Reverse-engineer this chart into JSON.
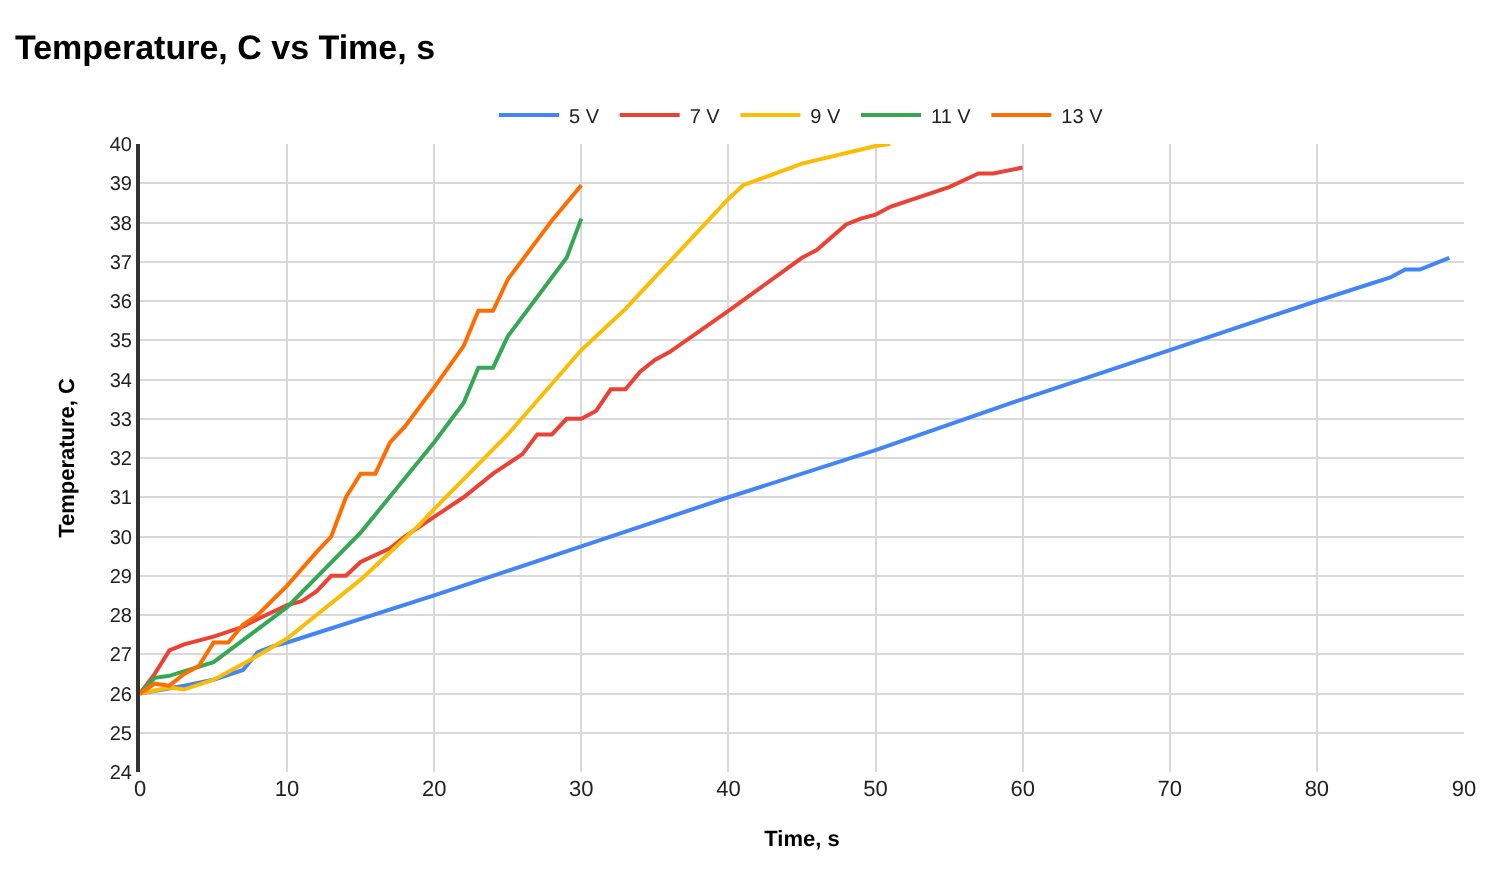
{
  "chart_data": {
    "type": "line",
    "title": "Temperature, C vs Time, s",
    "xlabel": "Time, s",
    "ylabel": "Temperature, C",
    "xlim": [
      0,
      90
    ],
    "xticks": [
      0,
      10,
      20,
      30,
      40,
      50,
      60,
      70,
      80,
      90
    ],
    "ylim": [
      24,
      40
    ],
    "yticks": [
      24,
      25,
      26,
      27,
      28,
      29,
      30,
      31,
      32,
      33,
      34,
      35,
      36,
      37,
      38,
      39,
      40
    ],
    "grid": true,
    "legend": "top",
    "marker": "none",
    "line_style": "solid",
    "series": [
      {
        "name": "5 V",
        "color": "#4285f4",
        "x": [
          0,
          3,
          5,
          7,
          8,
          9,
          10,
          20,
          30,
          40,
          50,
          60,
          70,
          80,
          85,
          86,
          87,
          89
        ],
        "values": [
          26,
          26.2,
          26.35,
          26.6,
          27.05,
          27.2,
          27.3,
          28.5,
          29.75,
          31,
          32.2,
          33.5,
          34.75,
          36,
          36.6,
          36.8,
          36.8,
          37.1
        ]
      },
      {
        "name": "7 V",
        "color": "#ea4335",
        "x": [
          0,
          1,
          2,
          3,
          5,
          7,
          8,
          10,
          11,
          12,
          13,
          14,
          15,
          17,
          18,
          20,
          22,
          24,
          26,
          27,
          28,
          29,
          30,
          31,
          32,
          33,
          34,
          35,
          36,
          40,
          45,
          46,
          48,
          49,
          50,
          51,
          55,
          57,
          58,
          60
        ],
        "values": [
          26,
          26.5,
          27.1,
          27.25,
          27.45,
          27.7,
          27.9,
          28.25,
          28.35,
          28.6,
          29,
          29,
          29.35,
          29.7,
          30,
          30.5,
          31,
          31.6,
          32.1,
          32.6,
          32.6,
          33,
          33,
          33.2,
          33.75,
          33.75,
          34.2,
          34.5,
          34.7,
          35.75,
          37.1,
          37.3,
          37.95,
          38.1,
          38.2,
          38.4,
          38.9,
          39.25,
          39.25,
          39.4
        ]
      },
      {
        "name": "9 V",
        "color": "#fbbc04",
        "x": [
          0,
          2,
          3,
          5,
          7,
          10,
          12,
          15,
          18,
          19,
          20,
          25,
          30,
          33,
          35,
          40,
          41,
          45,
          50,
          51
        ],
        "values": [
          26,
          26.15,
          26.1,
          26.35,
          26.75,
          27.4,
          28,
          28.9,
          29.95,
          30.3,
          30.7,
          32.6,
          34.75,
          35.8,
          36.6,
          38.6,
          38.95,
          39.5,
          39.95,
          40
        ]
      },
      {
        "name": "11 V",
        "color": "#34a853",
        "x": [
          0,
          1,
          2,
          5,
          10,
          15,
          20,
          22,
          23,
          24,
          25,
          29,
          30
        ],
        "values": [
          26,
          26.4,
          26.45,
          26.8,
          28.2,
          30.1,
          32.4,
          33.4,
          34.3,
          34.3,
          35.1,
          37.1,
          38.1
        ]
      },
      {
        "name": "13 V",
        "color": "#ff6d01",
        "x": [
          0,
          1,
          2,
          3,
          4,
          5,
          6,
          7,
          8,
          10,
          12,
          13,
          14,
          15,
          16,
          17,
          18,
          20,
          22,
          23,
          24,
          25,
          27,
          28,
          30
        ],
        "values": [
          26,
          26.25,
          26.2,
          26.5,
          26.7,
          27.3,
          27.3,
          27.75,
          28,
          28.75,
          29.6,
          30,
          31,
          31.6,
          31.6,
          32.4,
          32.8,
          33.8,
          34.85,
          35.75,
          35.75,
          36.55,
          37.55,
          38.05,
          38.95
        ]
      }
    ]
  }
}
